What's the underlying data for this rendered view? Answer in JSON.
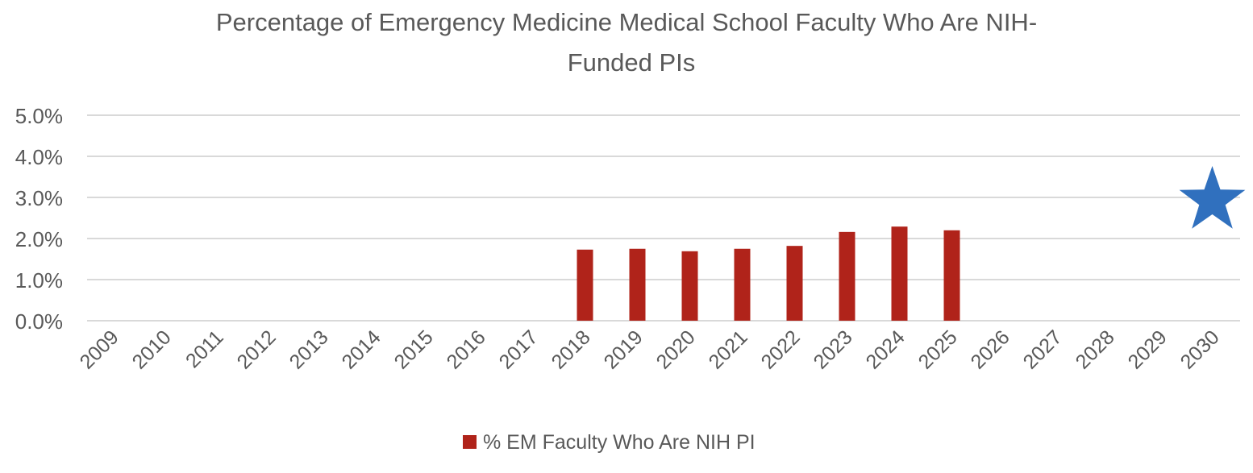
{
  "chart_data": {
    "type": "bar",
    "title": "Percentage of Emergency Medicine Medical School Faculty Who Are NIH-Funded PIs",
    "title_lines": [
      "Percentage of Emergency Medicine Medical School Faculty Who Are NIH-",
      "Funded PIs"
    ],
    "categories": [
      "2009",
      "2010",
      "2011",
      "2012",
      "2013",
      "2014",
      "2015",
      "2016",
      "2017",
      "2018",
      "2019",
      "2020",
      "2021",
      "2022",
      "2023",
      "2024",
      "2025",
      "2026",
      "2027",
      "2028",
      "2029",
      "2030"
    ],
    "series": [
      {
        "name": "% EM Faculty Who Are NIH PI",
        "color": "#B0231A",
        "values": [
          null,
          null,
          null,
          null,
          null,
          null,
          null,
          null,
          null,
          1.73,
          1.75,
          1.69,
          1.75,
          1.82,
          2.16,
          2.29,
          2.2,
          null,
          null,
          null,
          null,
          null
        ]
      }
    ],
    "target_marker": {
      "category": "2030",
      "value": 3.0,
      "shape": "star",
      "color": "#3070BE"
    },
    "yticks": [
      "0.0%",
      "1.0%",
      "2.0%",
      "3.0%",
      "4.0%",
      "5.0%"
    ],
    "ylim": [
      0,
      5
    ],
    "grid": true,
    "legend_position": "bottom",
    "xlabel": "",
    "ylabel": ""
  }
}
